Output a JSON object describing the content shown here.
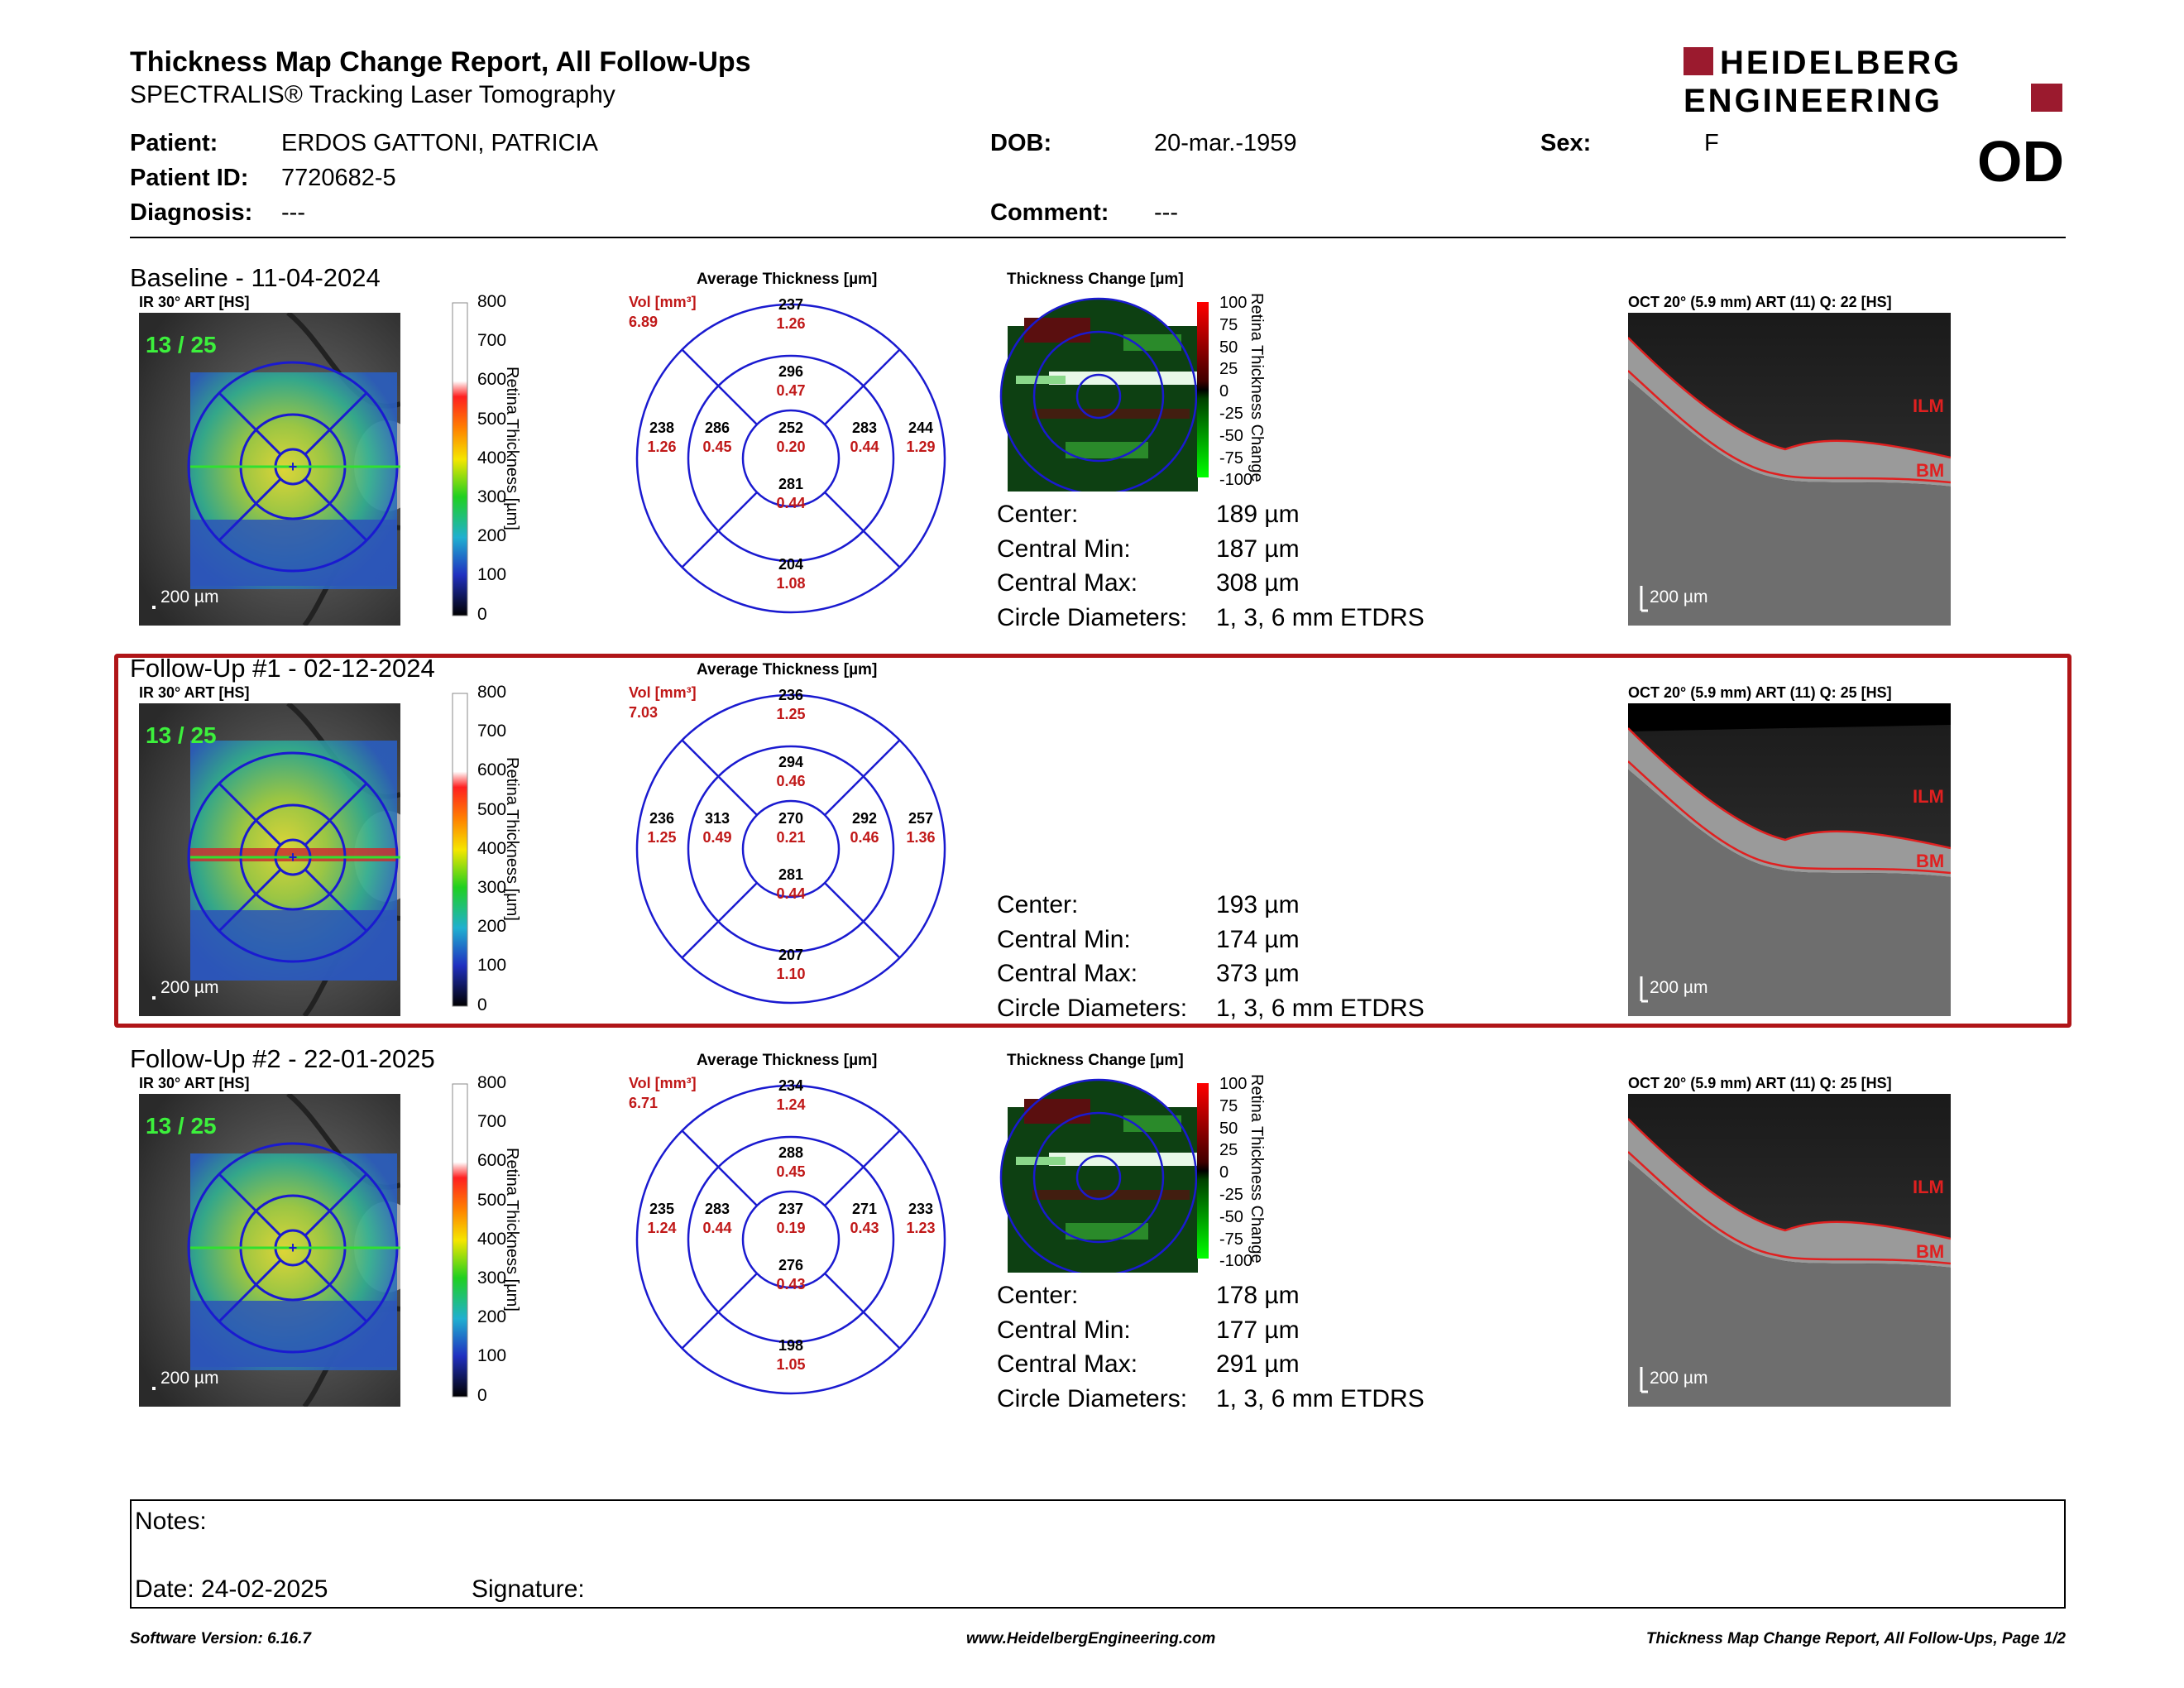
{
  "header": {
    "title": "Thickness Map Change Report, All Follow-Ups",
    "subtitle": "SPECTRALIS® Tracking Laser Tomography",
    "logo_line1": "HEIDELBERG",
    "logo_line2": "ENGINEERING",
    "eye": "OD"
  },
  "patient": {
    "patient_label": "Patient:",
    "patient_value": "ERDOS GATTONI, PATRICIA",
    "id_label": "Patient ID:",
    "id_value": "7720682-5",
    "diagnosis_label": "Diagnosis:",
    "diagnosis_value": "---",
    "dob_label": "DOB:",
    "dob_value": "20-mar.-1959",
    "comment_label": "Comment:",
    "comment_value": "---",
    "sex_label": "Sex:",
    "sex_value": "F"
  },
  "common": {
    "ir_label": "IR 30° ART [HS]",
    "scale_label": "200 µm",
    "colorbar_ticks": [
      "800",
      "700",
      "600",
      "500",
      "400",
      "300",
      "200",
      "100",
      "0"
    ],
    "colorbar_title": "Retina Thickness [µm]",
    "avg_title": "Average Thickness [µm]",
    "vol_label": "Vol [mm³]",
    "change_title": "Thickness Change [µm]",
    "change_ticks": [
      "100",
      "75",
      "50",
      "25",
      "0",
      "-25",
      "-50",
      "-75",
      "-100"
    ],
    "change_cbar_title": "Retina Thickness Change",
    "center_label": "Center:",
    "cmin_label": "Central Min:",
    "cmax_label": "Central Max:",
    "diam_label": "Circle Diameters:",
    "diam_value": "1, 3, 6 mm ETDRS",
    "ilm": "ILM",
    "bm": "BM"
  },
  "exams": [
    {
      "title": "Baseline - 11-04-2024",
      "frames": "13 / 25",
      "vol": "6.89",
      "oct_label": "OCT 20° (5.9 mm) ART (11) Q: 22 [HS]",
      "center": "189 µm",
      "cmin": "187 µm",
      "cmax": "308 µm",
      "etdrs": {
        "center": [
          "252",
          "0.20"
        ],
        "inner_sup": [
          "296",
          "0.47"
        ],
        "inner_inf": [
          "281",
          "0.44"
        ],
        "inner_nas": [
          "286",
          "0.45"
        ],
        "inner_temp": [
          "283",
          "0.44"
        ],
        "outer_sup": [
          "237",
          "1.26"
        ],
        "outer_inf": [
          "204",
          "1.08"
        ],
        "outer_nas": [
          "238",
          "1.26"
        ],
        "outer_temp": [
          "244",
          "1.29"
        ]
      }
    },
    {
      "title": "Follow-Up #1 - 02-12-2024",
      "frames": "13 / 25",
      "vol": "7.03",
      "oct_label": "OCT 20° (5.9 mm) ART (11) Q: 25 [HS]",
      "center": "193 µm",
      "cmin": "174 µm",
      "cmax": "373 µm",
      "etdrs": {
        "center": [
          "270",
          "0.21"
        ],
        "inner_sup": [
          "294",
          "0.46"
        ],
        "inner_inf": [
          "281",
          "0.44"
        ],
        "inner_nas": [
          "313",
          "0.49"
        ],
        "inner_temp": [
          "292",
          "0.46"
        ],
        "outer_sup": [
          "236",
          "1.25"
        ],
        "outer_inf": [
          "207",
          "1.10"
        ],
        "outer_nas": [
          "236",
          "1.25"
        ],
        "outer_temp": [
          "257",
          "1.36"
        ]
      }
    },
    {
      "title": "Follow-Up #2 - 22-01-2025",
      "frames": "13 / 25",
      "vol": "6.71",
      "oct_label": "OCT 20° (5.9 mm) ART (11) Q: 25 [HS]",
      "center": "178 µm",
      "cmin": "177 µm",
      "cmax": "291 µm",
      "etdrs": {
        "center": [
          "237",
          "0.19"
        ],
        "inner_sup": [
          "288",
          "0.45"
        ],
        "inner_inf": [
          "276",
          "0.43"
        ],
        "inner_nas": [
          "283",
          "0.44"
        ],
        "inner_temp": [
          "271",
          "0.43"
        ],
        "outer_sup": [
          "234",
          "1.24"
        ],
        "outer_inf": [
          "198",
          "1.05"
        ],
        "outer_nas": [
          "235",
          "1.24"
        ],
        "outer_temp": [
          "233",
          "1.23"
        ]
      }
    }
  ],
  "notes": {
    "notes_label": "Notes:",
    "date_label": "Date: 24-02-2025",
    "signature_label": "Signature:"
  },
  "footer": {
    "left": "Software Version: 6.16.7",
    "center": "www.HeidelbergEngineering.com",
    "right": "Thickness Map Change Report, All Follow-Ups, Page 1/2"
  }
}
